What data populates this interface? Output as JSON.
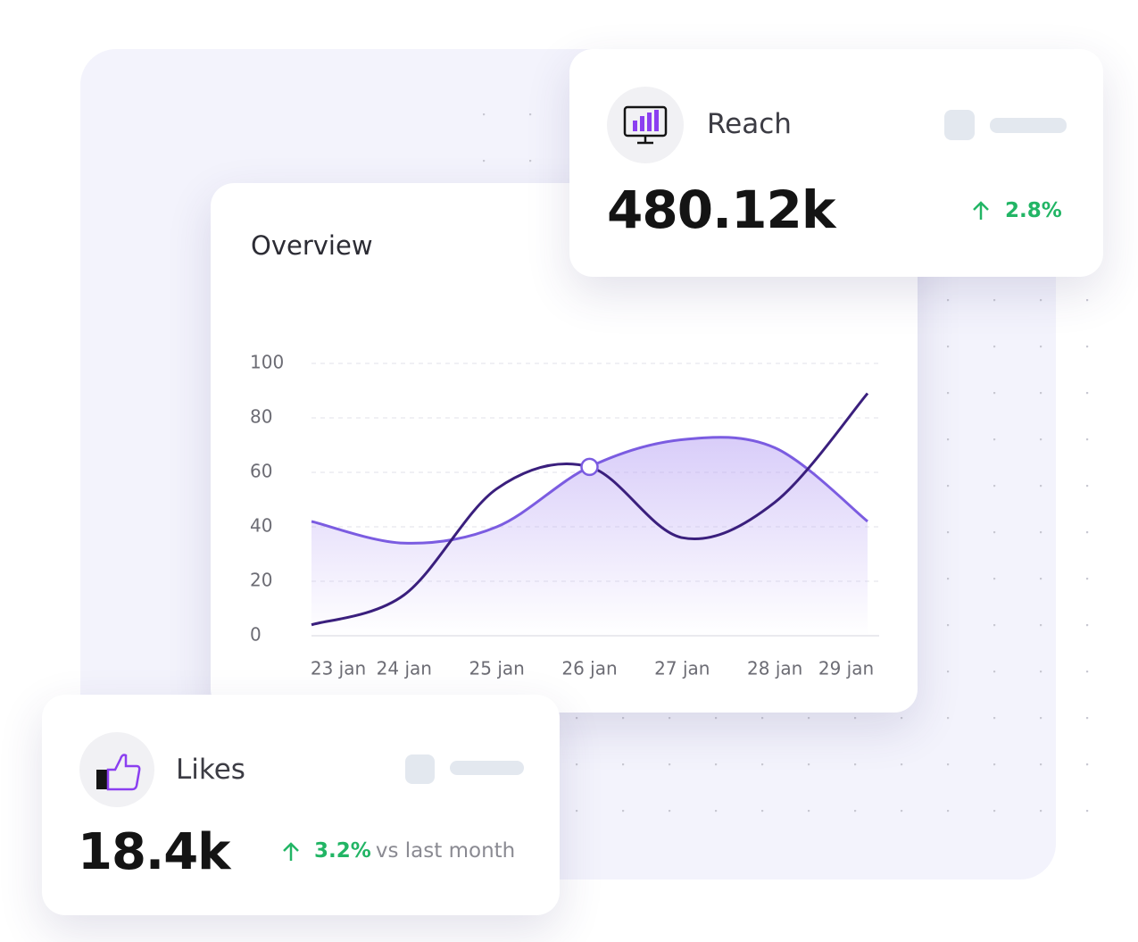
{
  "chart_data": {
    "type": "line",
    "title": "Overview",
    "categories": [
      "23 jan",
      "24 jan",
      "25 jan",
      "26 jan",
      "27 jan",
      "28 jan",
      "29 jan"
    ],
    "series": [
      {
        "color": "#7b5ce1",
        "values": [
          42,
          34,
          40,
          62,
          72,
          69,
          42
        ]
      },
      {
        "color": "#3a1f7d",
        "values": [
          4,
          15,
          54,
          62,
          36,
          49,
          89
        ]
      }
    ],
    "ylim": [
      0,
      100
    ],
    "yticks": [
      0,
      20,
      40,
      60,
      80,
      100
    ],
    "grid": true
  },
  "reach_card": {
    "label": "Reach",
    "value": "480.12k",
    "change": "2.8%"
  },
  "likes_card": {
    "label": "Likes",
    "value": "18.4k",
    "change": "3.2%",
    "comparison": "vs last month"
  }
}
